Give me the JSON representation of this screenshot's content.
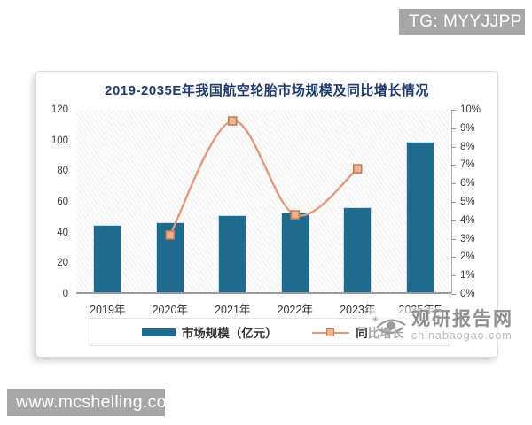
{
  "badge": {
    "label": "TG: MYYJJPP"
  },
  "bottom_bar": {
    "label": "www.mcshelling.com"
  },
  "watermark": {
    "site_name": "观研报告网",
    "site_url": "chinabaogao.com"
  },
  "chart_data": {
    "type": "combo",
    "title": "2019-2035E年我国航空轮胎市场规模及同比增长情况",
    "categories": [
      "2019年",
      "2020年",
      "2021年",
      "2022年",
      "2023年",
      "2035年E"
    ],
    "series": [
      {
        "name": "市场规模（亿元）",
        "type": "bar",
        "axis": "left",
        "values": [
          44,
          45.5,
          50,
          52,
          55.5,
          98
        ]
      },
      {
        "name": "同比增长",
        "type": "line",
        "axis": "right",
        "values": [
          null,
          3.2,
          9.4,
          4.3,
          6.8,
          null
        ]
      }
    ],
    "left_axis": {
      "min": 0,
      "max": 120,
      "step": 20,
      "tick_labels": [
        "0",
        "20",
        "40",
        "60",
        "80",
        "100",
        "120"
      ]
    },
    "right_axis": {
      "min": 0,
      "max": 10,
      "step": 1,
      "tick_labels": [
        "0%",
        "1%",
        "2%",
        "3%",
        "4%",
        "5%",
        "6%",
        "7%",
        "8%",
        "9%",
        "10%"
      ]
    },
    "legend_position": "bottom",
    "grid": false
  },
  "colors": {
    "bar": "#1f6b8e",
    "bar_edge": "#c9e0ec",
    "line": "#e19a7e",
    "marker_fill": "#edb28f",
    "marker_border": "#c97c53",
    "title": "#1e3a6e",
    "axis_text": "#3a3a3a",
    "badge_bg": "#a7a7a7",
    "watermark_text": "#8f8f8f"
  }
}
